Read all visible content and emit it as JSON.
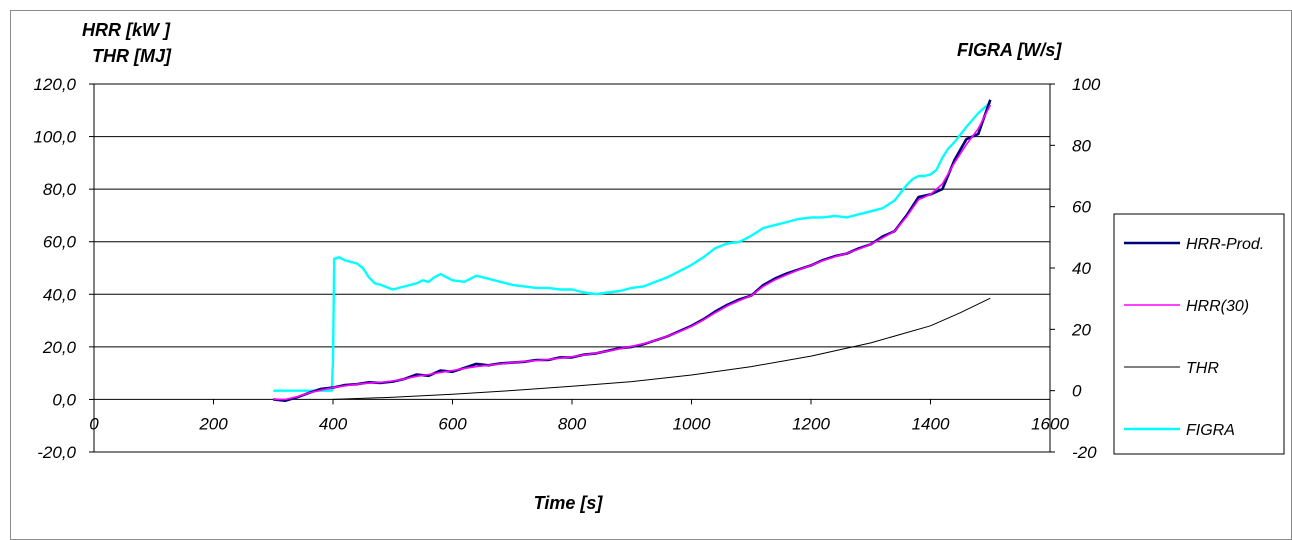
{
  "chart_data": {
    "type": "line",
    "y_axis_title_line1": "HRR [kW ]",
    "y_axis_title_line2": "THR [MJ]",
    "y2_axis_title": "FIGRA [W/s]",
    "x_axis_title": "Time [s]",
    "xlim": [
      0,
      1600
    ],
    "ylim": [
      -20,
      120
    ],
    "y2lim": [
      -20,
      100
    ],
    "x_ticks": [
      0,
      200,
      400,
      600,
      800,
      1000,
      1200,
      1400,
      1600
    ],
    "x_tick_labels": [
      "0",
      "200",
      "400",
      "600",
      "800",
      "1000",
      "1200",
      "1400",
      "1600"
    ],
    "y_ticks": [
      -20,
      0,
      20,
      40,
      60,
      80,
      100,
      120
    ],
    "y_tick_labels": [
      "-20,0",
      "0,0",
      "20,0",
      "40,0",
      "60,0",
      "80,0",
      "100,0",
      "120,0"
    ],
    "y2_ticks": [
      -20,
      0,
      20,
      40,
      60,
      80,
      100
    ],
    "y2_tick_labels": [
      "-20",
      "0",
      "20",
      "40",
      "60",
      "80",
      "100"
    ],
    "grid": "horizontal",
    "legend_position": "right",
    "series": [
      {
        "name": "HRR-Prod.",
        "axis": "left",
        "color": "#00007a",
        "width": 2.6,
        "x": [
          300,
          320,
          340,
          360,
          380,
          400,
          420,
          440,
          460,
          480,
          500,
          520,
          540,
          560,
          580,
          600,
          620,
          640,
          660,
          680,
          700,
          720,
          740,
          760,
          780,
          800,
          820,
          840,
          860,
          880,
          900,
          920,
          940,
          960,
          980,
          1000,
          1020,
          1040,
          1060,
          1080,
          1100,
          1120,
          1140,
          1160,
          1180,
          1200,
          1220,
          1240,
          1260,
          1280,
          1300,
          1320,
          1340,
          1360,
          1380,
          1400,
          1420,
          1440,
          1460,
          1480,
          1500
        ],
        "y": [
          0,
          -0.5,
          0.8,
          2.5,
          4,
          4.5,
          5.5,
          5.8,
          6.5,
          6.3,
          6.8,
          7.8,
          9.5,
          9,
          11,
          10.5,
          12,
          13.5,
          13,
          13.7,
          14,
          14.3,
          15,
          15,
          16,
          16,
          17,
          17.5,
          18.5,
          19.5,
          20,
          21,
          22.5,
          24,
          26,
          28,
          30.5,
          33.5,
          36,
          38,
          39.5,
          43.5,
          46,
          48,
          49.5,
          51,
          53,
          54.5,
          55.5,
          57.5,
          59,
          62,
          64,
          70,
          77,
          78,
          80,
          91,
          99,
          101,
          114
        ]
      },
      {
        "name": "HRR(30)",
        "axis": "left",
        "color": "#ff00ff",
        "width": 1.6,
        "x": [
          300,
          320,
          340,
          360,
          380,
          400,
          420,
          440,
          460,
          480,
          500,
          520,
          540,
          560,
          580,
          600,
          620,
          640,
          660,
          680,
          700,
          720,
          740,
          760,
          780,
          800,
          820,
          840,
          860,
          880,
          900,
          920,
          940,
          960,
          980,
          1000,
          1020,
          1040,
          1060,
          1080,
          1100,
          1120,
          1140,
          1160,
          1180,
          1200,
          1220,
          1240,
          1260,
          1280,
          1300,
          1320,
          1340,
          1360,
          1380,
          1400,
          1420,
          1440,
          1460,
          1480,
          1500
        ],
        "y": [
          0,
          0,
          1,
          2.5,
          3.5,
          4.5,
          5.2,
          5.8,
          6.2,
          6.5,
          7,
          7.8,
          8.8,
          9.5,
          10.3,
          11,
          11.8,
          12.5,
          13,
          13.5,
          14,
          14.4,
          14.8,
          15.2,
          15.7,
          16.2,
          16.9,
          17.6,
          18.4,
          19.3,
          20.2,
          21.2,
          22.5,
          24,
          25.8,
          27.8,
          30.2,
          33,
          35.6,
          37.6,
          39.5,
          43,
          45.5,
          47.5,
          49.3,
          51,
          52.8,
          54.3,
          55.6,
          57.2,
          59,
          61.5,
          64,
          69.5,
          76,
          78,
          82,
          90,
          97,
          103,
          112
        ]
      },
      {
        "name": "THR",
        "axis": "left",
        "color": "#000000",
        "width": 1,
        "x": [
          400,
          500,
          600,
          700,
          800,
          900,
          1000,
          1100,
          1200,
          1300,
          1400,
          1450,
          1500
        ],
        "y": [
          0,
          0.8,
          2,
          3.4,
          5,
          6.8,
          9.3,
          12.5,
          16.5,
          21.5,
          28,
          33,
          38.5
        ]
      },
      {
        "name": "FIGRA",
        "axis": "right",
        "color": "#00ffff",
        "width": 2.4,
        "x": [
          300,
          320,
          340,
          360,
          380,
          398,
          400,
          402,
          410,
          420,
          430,
          440,
          450,
          460,
          470,
          480,
          500,
          520,
          540,
          550,
          560,
          570,
          580,
          600,
          620,
          640,
          660,
          680,
          700,
          720,
          740,
          760,
          780,
          800,
          820,
          840,
          860,
          880,
          900,
          920,
          940,
          960,
          980,
          1000,
          1020,
          1040,
          1060,
          1080,
          1100,
          1120,
          1140,
          1160,
          1180,
          1200,
          1220,
          1240,
          1260,
          1280,
          1300,
          1320,
          1340,
          1360,
          1370,
          1380,
          1390,
          1400,
          1410,
          1420,
          1430,
          1440,
          1460,
          1480,
          1500
        ],
        "y": [
          0,
          0,
          0,
          0,
          0,
          0,
          10,
          43,
          43.5,
          42.5,
          42,
          41.5,
          40,
          37,
          35,
          34.5,
          33,
          34,
          35,
          36,
          35.5,
          37,
          38,
          36,
          35.5,
          37.5,
          36.5,
          35.5,
          34.5,
          34,
          33.5,
          33.5,
          33,
          33,
          32,
          31.5,
          32,
          32.5,
          33.5,
          34,
          35.5,
          37,
          39,
          41,
          43.5,
          46.5,
          48,
          48.5,
          50.5,
          53,
          54,
          55,
          56,
          56.5,
          56.5,
          57,
          56.5,
          57.5,
          58.5,
          59.5,
          62,
          67,
          69,
          70,
          70,
          70.5,
          72,
          76,
          79,
          81,
          86,
          90.5,
          94
        ]
      }
    ]
  }
}
